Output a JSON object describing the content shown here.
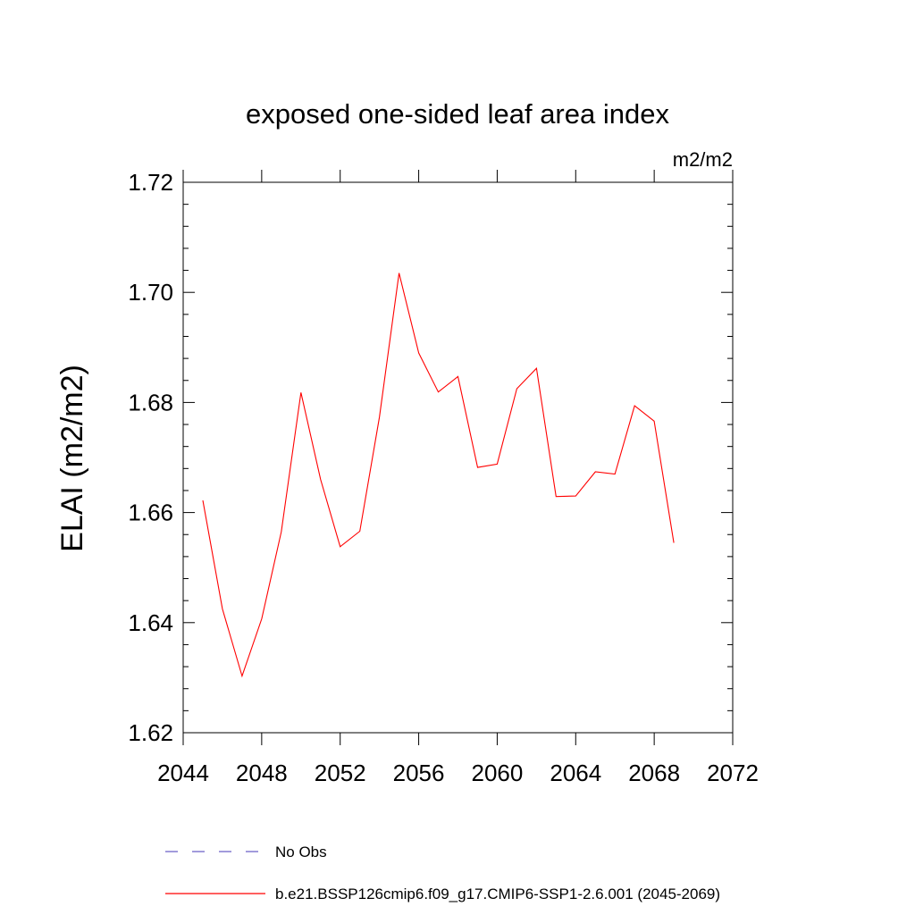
{
  "chart_data": {
    "type": "line",
    "title": "exposed one-sided leaf area index",
    "units": "m2/m2",
    "xlabel": "",
    "ylabel": "ELAI  (m2/m2)",
    "xlim": [
      2044,
      2072
    ],
    "ylim": [
      1.62,
      1.72
    ],
    "xticks": [
      2044,
      2048,
      2052,
      2056,
      2060,
      2064,
      2068,
      2072
    ],
    "yticks": [
      1.62,
      1.64,
      1.66,
      1.68,
      1.7,
      1.72
    ],
    "ytick_labels": [
      "1.62",
      "1.64",
      "1.66",
      "1.68",
      "1.70",
      "1.72"
    ],
    "grid": false,
    "legend_position": "bottom",
    "legend": [
      {
        "label": "No Obs",
        "color": "#6b5fc7",
        "style": "dashed"
      },
      {
        "label": "b.e21.BSSP126cmip6.f09_g17.CMIP6-SSP1-2.6.001 (2045-2069)",
        "color": "#ff0000",
        "style": "solid"
      }
    ],
    "series": [
      {
        "name": "b.e21.BSSP126cmip6.f09_g17.CMIP6-SSP1-2.6.001 (2045-2069)",
        "color": "#ff0000",
        "x": [
          2045,
          2046,
          2047,
          2048,
          2049,
          2050,
          2051,
          2052,
          2053,
          2054,
          2055,
          2056,
          2057,
          2058,
          2059,
          2060,
          2061,
          2062,
          2063,
          2064,
          2065,
          2066,
          2067,
          2068,
          2069
        ],
        "y": [
          1.6622,
          1.6425,
          1.6303,
          1.6407,
          1.6565,
          1.6818,
          1.666,
          1.6538,
          1.6566,
          1.6773,
          1.7035,
          1.689,
          1.6819,
          1.6847,
          1.6682,
          1.6688,
          1.6825,
          1.6862,
          1.6629,
          1.663,
          1.6674,
          1.667,
          1.6794,
          1.6766,
          1.6545
        ]
      }
    ]
  }
}
